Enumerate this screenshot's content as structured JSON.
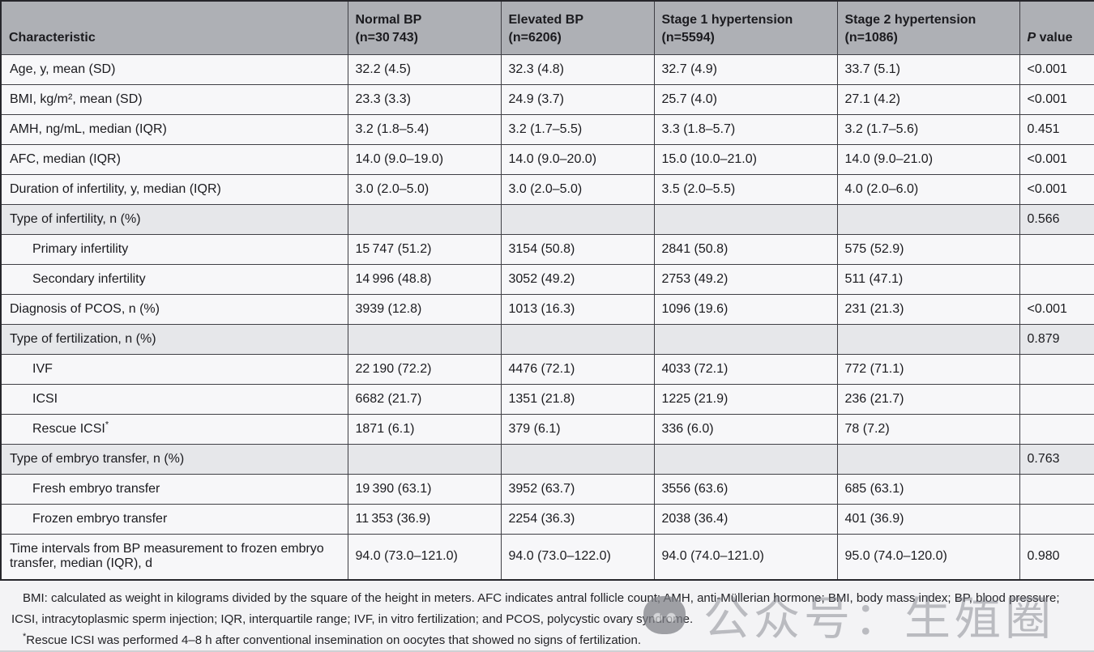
{
  "colors": {
    "header_bg": "#aeb0b5",
    "section_row_bg": "#e6e7ea",
    "row_bg": "#f7f7f9",
    "border": "#3f3f45",
    "footnote_bg": "#f3f3f5",
    "watermark_grey": "#7b7d85"
  },
  "table": {
    "columns": [
      {
        "key": "characteristic",
        "lines": [
          "Characteristic"
        ]
      },
      {
        "key": "normal-bp",
        "lines": [
          "Normal BP",
          "(n=30 743)"
        ]
      },
      {
        "key": "elevated-bp",
        "lines": [
          "Elevated BP",
          "(n=6206)"
        ]
      },
      {
        "key": "stage-1-hypertension",
        "lines": [
          "Stage 1 hypertension",
          "(n=5594)"
        ]
      },
      {
        "key": "stage-2-hypertension",
        "lines": [
          "Stage 2 hypertension",
          "(n=1086)"
        ]
      },
      {
        "key": "p-value",
        "parts": [
          {
            "text": "P",
            "italic": true
          },
          {
            "text": " value"
          }
        ]
      }
    ],
    "rows": [
      {
        "label": "Age, y, mean (SD)",
        "values": [
          "32.2 (4.5)",
          "32.3 (4.8)",
          "32.7 (4.9)",
          "33.7 (5.1)"
        ],
        "p": "<0.001"
      },
      {
        "label": "BMI, kg/m², mean (SD)",
        "values": [
          "23.3 (3.3)",
          "24.9 (3.7)",
          "25.7 (4.0)",
          "27.1 (4.2)"
        ],
        "p": "<0.001"
      },
      {
        "label": "AMH, ng/mL, median (IQR)",
        "values": [
          "3.2 (1.8–5.4)",
          "3.2 (1.7–5.5)",
          "3.3 (1.8–5.7)",
          "3.2 (1.7–5.6)"
        ],
        "p": "0.451"
      },
      {
        "label": "AFC, median (IQR)",
        "values": [
          "14.0 (9.0–19.0)",
          "14.0 (9.0–20.0)",
          "15.0 (10.0–21.0)",
          "14.0 (9.0–21.0)"
        ],
        "p": "<0.001"
      },
      {
        "label": "Duration of infertility, y, median (IQR)",
        "values": [
          "3.0 (2.0–5.0)",
          "3.0 (2.0–5.0)",
          "3.5 (2.0–5.5)",
          "4.0 (2.0–6.0)"
        ],
        "p": "<0.001"
      },
      {
        "label": "Type of infertility, n (%)",
        "section": true,
        "values": [
          "",
          "",
          "",
          ""
        ],
        "p": "0.566"
      },
      {
        "label": "Primary infertility",
        "indent": true,
        "values": [
          "15 747 (51.2)",
          "3154 (50.8)",
          "2841 (50.8)",
          "575 (52.9)"
        ],
        "p": ""
      },
      {
        "label": "Secondary infertility",
        "indent": true,
        "values": [
          "14 996 (48.8)",
          "3052 (49.2)",
          "2753 (49.2)",
          "511 (47.1)"
        ],
        "p": ""
      },
      {
        "label": "Diagnosis of PCOS, n (%)",
        "values": [
          "3939 (12.8)",
          "1013 (16.3)",
          "1096 (19.6)",
          "231 (21.3)"
        ],
        "p": "<0.001"
      },
      {
        "label": "Type of fertilization, n (%)",
        "section": true,
        "values": [
          "",
          "",
          "",
          ""
        ],
        "p": "0.879"
      },
      {
        "label": "IVF",
        "indent": true,
        "values": [
          "22 190 (72.2)",
          "4476 (72.1)",
          "4033 (72.1)",
          "772 (71.1)"
        ],
        "p": ""
      },
      {
        "label": "ICSI",
        "indent": true,
        "values": [
          "6682 (21.7)",
          "1351 (21.8)",
          "1225 (21.9)",
          "236 (21.7)"
        ],
        "p": ""
      },
      {
        "label": "Rescue ICSI",
        "sup": "*",
        "indent": true,
        "values": [
          "1871 (6.1)",
          "379 (6.1)",
          "336 (6.0)",
          "78 (7.2)"
        ],
        "p": ""
      },
      {
        "label": "Type of embryo transfer, n (%)",
        "section": true,
        "values": [
          "",
          "",
          "",
          ""
        ],
        "p": "0.763"
      },
      {
        "label": "Fresh embryo transfer",
        "indent": true,
        "values": [
          "19 390 (63.1)",
          "3952 (63.7)",
          "3556 (63.6)",
          "685 (63.1)"
        ],
        "p": ""
      },
      {
        "label": "Frozen embryo transfer",
        "indent": true,
        "values": [
          "11 353 (36.9)",
          "2254 (36.3)",
          "2038 (36.4)",
          "401 (36.9)"
        ],
        "p": ""
      },
      {
        "label": "Time intervals from BP measurement to frozen embryo transfer, median (IQR), d",
        "tall": true,
        "values": [
          "94.0 (73.0–121.0)",
          "94.0 (73.0–122.0)",
          "94.0 (74.0–121.0)",
          "95.0 (74.0–120.0)"
        ],
        "p": "0.980"
      }
    ]
  },
  "footnotes": [
    {
      "text": "BMI: calculated as weight in kilograms divided by the square of the height in meters. AFC indicates antral follicle count; AMH, anti-Müllerian hormone; BMI, body mass index; BP, blood pressure; ICSI, intracytoplasmic sperm injection; IQR, interquartile range; IVF, in vitro fertilization; and PCOS, polycystic ovary syndrome.",
      "sup": ""
    },
    {
      "text": "Rescue ICSI was performed 4–8 h after conventional insemination on oocytes that showed no signs of fertilization.",
      "sup": "*"
    }
  ],
  "watermark": {
    "text": "公众号：生殖圈",
    "icon": "panda-logo"
  }
}
